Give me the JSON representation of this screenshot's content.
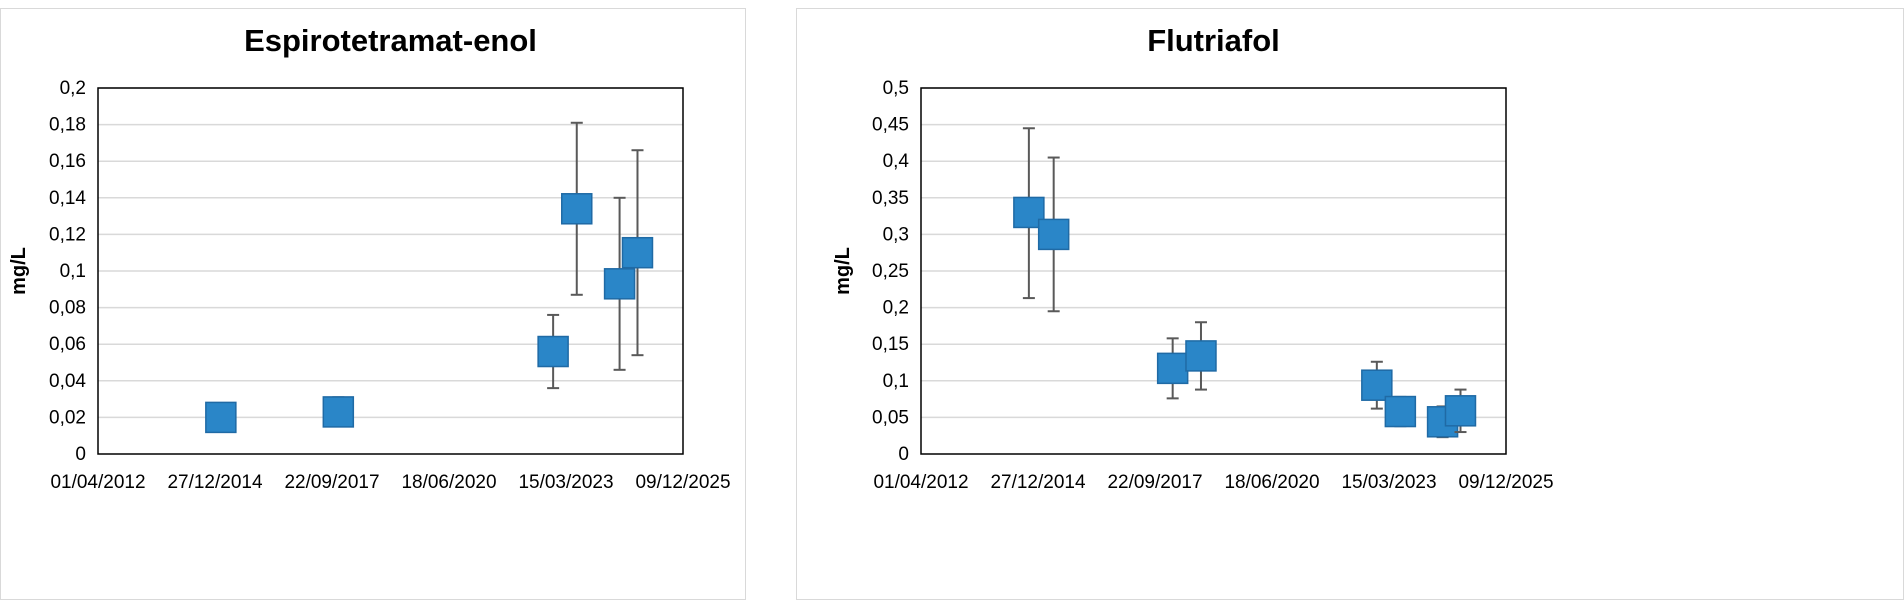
{
  "colors": {
    "marker_fill": "#2a86c8",
    "marker_stroke": "#1f6aa5",
    "error_bar": "#595959",
    "grid": "#d9d9d9",
    "plot_border": "#000000"
  },
  "chart_data": [
    {
      "type": "scatter",
      "title": "Espirotetramat-enol",
      "ylabel": "mg/L",
      "xlabel": "",
      "marker": "square",
      "grid": true,
      "ylim": [
        0,
        0.2
      ],
      "y_ticks": [
        "0",
        "0,02",
        "0,04",
        "0,06",
        "0,08",
        "0,1",
        "0,12",
        "0,14",
        "0,16",
        "0,18",
        "0,2"
      ],
      "x_ticks": [
        "01/04/2012",
        "27/12/2014",
        "22/09/2017",
        "18/06/2020",
        "15/03/2023",
        "09/12/2025"
      ],
      "points": [
        {
          "x": "2015-02-15",
          "y": 0.02,
          "y_low": 0.02,
          "y_high": 0.02
        },
        {
          "x": "2017-11-15",
          "y": 0.023,
          "y_low": 0.016,
          "y_high": 0.031
        },
        {
          "x": "2022-11-25",
          "y": 0.056,
          "y_low": 0.036,
          "y_high": 0.076
        },
        {
          "x": "2023-06-15",
          "y": 0.134,
          "y_low": 0.087,
          "y_high": 0.181
        },
        {
          "x": "2024-06-15",
          "y": 0.093,
          "y_low": 0.046,
          "y_high": 0.14
        },
        {
          "x": "2024-11-15",
          "y": 0.11,
          "y_low": 0.054,
          "y_high": 0.166
        }
      ]
    },
    {
      "type": "scatter",
      "title": "Flutriafol",
      "ylabel": "mg/L",
      "xlabel": "",
      "marker": "square",
      "grid": true,
      "ylim": [
        0,
        0.5
      ],
      "y_ticks": [
        "0",
        "0,05",
        "0,1",
        "0,15",
        "0,2",
        "0,25",
        "0,3",
        "0,35",
        "0,4",
        "0,45",
        "0,5"
      ],
      "x_ticks": [
        "01/04/2012",
        "27/12/2014",
        "22/09/2017",
        "18/06/2020",
        "15/03/2023",
        "09/12/2025"
      ],
      "points": [
        {
          "x": "2014-10-10",
          "y": 0.33,
          "y_low": 0.213,
          "y_high": 0.445
        },
        {
          "x": "2015-05-10",
          "y": 0.3,
          "y_low": 0.195,
          "y_high": 0.405
        },
        {
          "x": "2018-02-20",
          "y": 0.117,
          "y_low": 0.076,
          "y_high": 0.158
        },
        {
          "x": "2018-10-20",
          "y": 0.134,
          "y_low": 0.088,
          "y_high": 0.18
        },
        {
          "x": "2022-12-01",
          "y": 0.094,
          "y_low": 0.062,
          "y_high": 0.126
        },
        {
          "x": "2023-06-20",
          "y": 0.058,
          "y_low": 0.038,
          "y_high": 0.078
        },
        {
          "x": "2024-06-15",
          "y": 0.044,
          "y_low": 0.023,
          "y_high": 0.065
        },
        {
          "x": "2024-11-15",
          "y": 0.059,
          "y_low": 0.03,
          "y_high": 0.088
        }
      ]
    }
  ]
}
